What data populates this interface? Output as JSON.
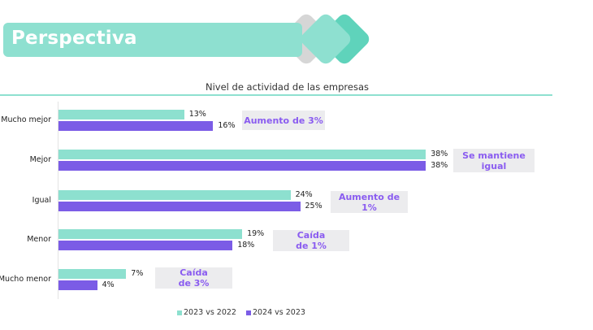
{
  "header": {
    "title": "Perspectiva"
  },
  "colors": {
    "teal": "#8de0cf",
    "purple": "#7b5ce6",
    "callout_bg": "#ececee",
    "callout_text": "#8a5cf0",
    "accent_dark_teal": "#5fd3bb",
    "chevron_gray": "#d6d6d6"
  },
  "chart_data": {
    "type": "bar",
    "orientation": "horizontal",
    "title": "Nivel de actividad de las empresas",
    "categories": [
      "Mucho mejor",
      "Mejor",
      "Igual",
      "Menor",
      "Mucho menor"
    ],
    "series": [
      {
        "name": "2023 vs 2022",
        "values": [
          13,
          38,
          24,
          19,
          7
        ],
        "labels": [
          "13%",
          "38%",
          "24%",
          "19%",
          "7%"
        ]
      },
      {
        "name": "2024 vs 2023",
        "values": [
          16,
          38,
          25,
          18,
          4
        ],
        "labels": [
          "16%",
          "38%",
          "25%",
          "18%",
          "4%"
        ]
      }
    ],
    "annotations": [
      "Aumento de 3%",
      "Se mantiene igual",
      "Aumento de 1%",
      "Caída de 1%",
      "Caída de 3%"
    ],
    "xlabel": "",
    "ylabel": "",
    "unit": "%",
    "grid": false,
    "legend_position": "bottom"
  },
  "legend": [
    {
      "label": "2023 vs 2022"
    },
    {
      "label": "2024 vs 2023"
    }
  ],
  "callouts": [
    {
      "line1": "Aumento de 3%",
      "line2": ""
    },
    {
      "line1": "Se mantiene",
      "line2": "igual"
    },
    {
      "line1": "Aumento de",
      "line2": "1%"
    },
    {
      "line1": "Caída",
      "line2": "de 1%"
    },
    {
      "line1": "Caída",
      "line2": "de 3%"
    }
  ]
}
